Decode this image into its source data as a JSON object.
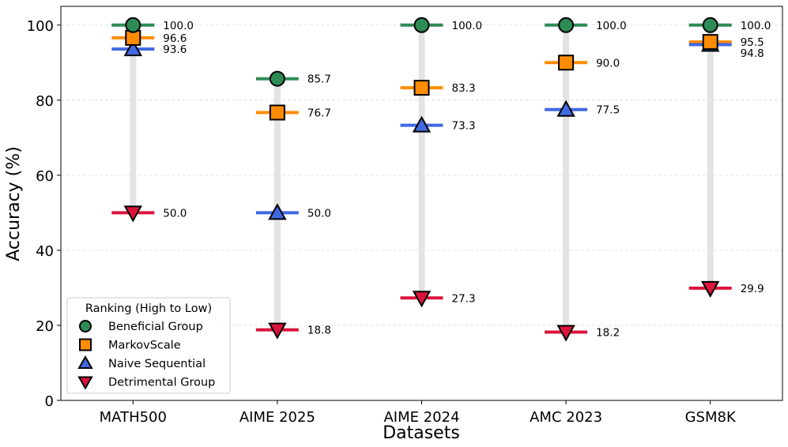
{
  "chart_data": {
    "type": "dot-range",
    "xlabel": "Datasets",
    "ylabel": "Accuracy (%)",
    "ylim": [
      0,
      105
    ],
    "yticks": [
      0,
      20,
      40,
      60,
      80,
      100
    ],
    "grid": "horizontal dashed",
    "categories": [
      "MATH500",
      "AIME 2025",
      "AIME 2024",
      "AMC 2023",
      "GSM8K"
    ],
    "series": [
      {
        "name": "Beneficial Group",
        "marker": "circle",
        "color": "#2e8b57",
        "values": [
          100.0,
          85.7,
          100.0,
          100.0,
          100.0
        ]
      },
      {
        "name": "MarkovScale",
        "marker": "square",
        "color": "#ff8c00",
        "values": [
          96.6,
          76.7,
          83.3,
          90.0,
          95.5
        ]
      },
      {
        "name": "Naive Sequential",
        "marker": "triangle-up",
        "color": "#4169e1",
        "values": [
          93.6,
          50.0,
          73.3,
          77.5,
          94.8
        ]
      },
      {
        "name": "Detrimental Group",
        "marker": "triangle-down",
        "color": "#dc143c",
        "values": [
          50.0,
          18.8,
          27.3,
          18.2,
          29.9
        ]
      }
    ],
    "legend": {
      "title": "Ranking (High to Low)",
      "placement": "lower-left"
    }
  }
}
